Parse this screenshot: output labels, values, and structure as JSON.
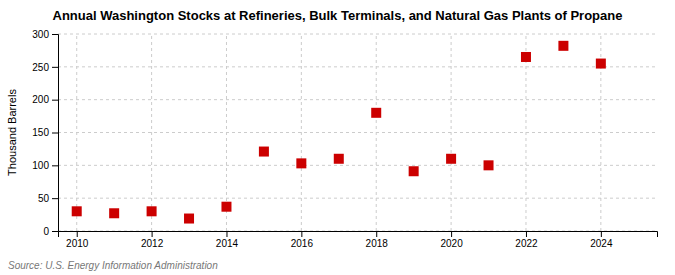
{
  "chart_data": {
    "type": "scatter",
    "title": "Annual Washington Stocks at Refineries, Bulk Terminals, and Natural Gas Plants of Propane",
    "ylabel": "Thousand Barrels",
    "source": "Source: U.S. Energy Information Administration",
    "x": [
      2010,
      2011,
      2012,
      2013,
      2014,
      2015,
      2016,
      2017,
      2018,
      2019,
      2020,
      2021,
      2022,
      2023,
      2024
    ],
    "values": [
      30,
      27,
      30,
      19,
      37,
      121,
      103,
      110,
      180,
      91,
      110,
      100,
      265,
      282,
      255
    ],
    "color": "#cc0000",
    "marker": "square",
    "xlim": [
      2009.5,
      2025.5
    ],
    "ylim": [
      0,
      300
    ],
    "xticks": [
      2010,
      2012,
      2014,
      2016,
      2018,
      2020,
      2022,
      2024
    ],
    "yticks": [
      0,
      50,
      100,
      150,
      200,
      250,
      300
    ],
    "grid": true
  }
}
